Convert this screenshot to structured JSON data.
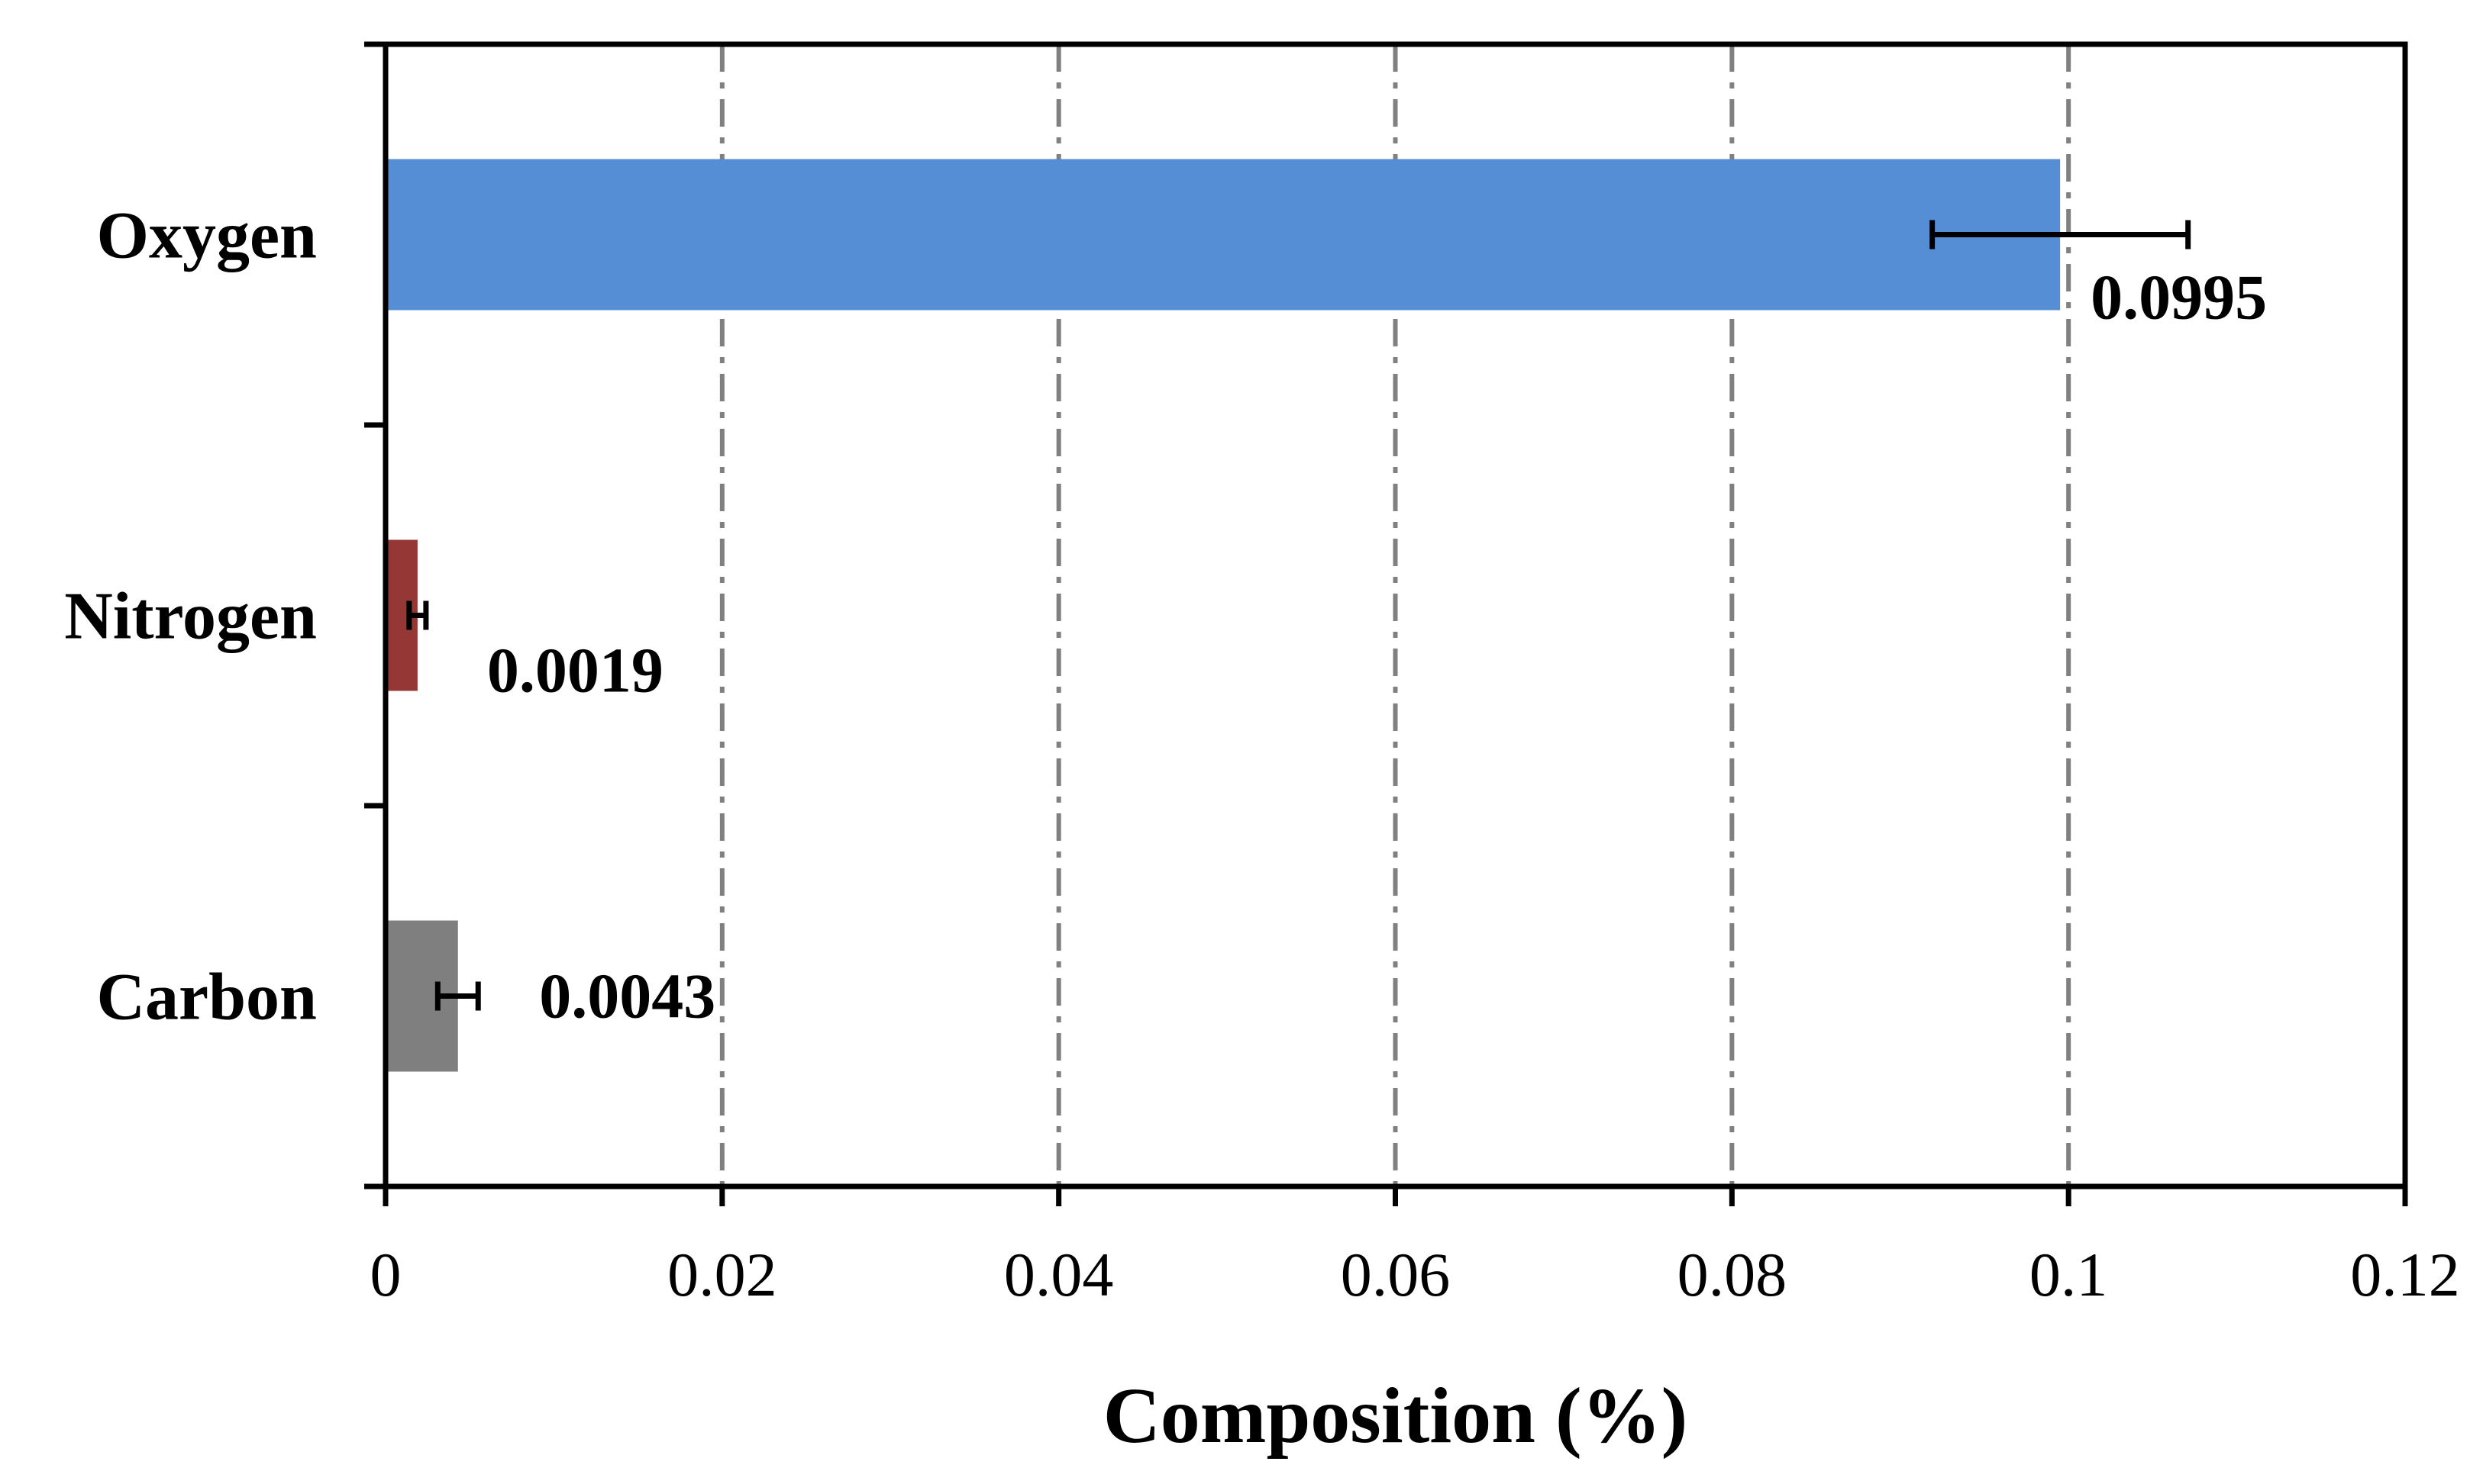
{
  "chart_data": {
    "type": "bar",
    "orientation": "horizontal",
    "categories": [
      "Oxygen",
      "Nitrogen",
      "Carbon"
    ],
    "values": [
      0.0995,
      0.0019,
      0.0043
    ],
    "error": [
      0.0076,
      0.0005,
      0.0012
    ],
    "data_labels": [
      "0.0995",
      "0.0019",
      "0.0043"
    ],
    "colors": [
      "#558ED5",
      "#953735",
      "#7F7F7F"
    ],
    "xlabel": "Composition (%)",
    "ylabel": "",
    "title": "",
    "xlim": [
      0,
      0.12
    ],
    "x_ticks": [
      0,
      0.02,
      0.04,
      0.06,
      0.08,
      0.1,
      0.12
    ],
    "x_tick_labels": [
      "0",
      "0.02",
      "0.04",
      "0.06",
      "0.08",
      "0.1",
      "0.12"
    ],
    "grid": "vertical dash-dot",
    "grid_color": "#808080",
    "legend": "none"
  }
}
